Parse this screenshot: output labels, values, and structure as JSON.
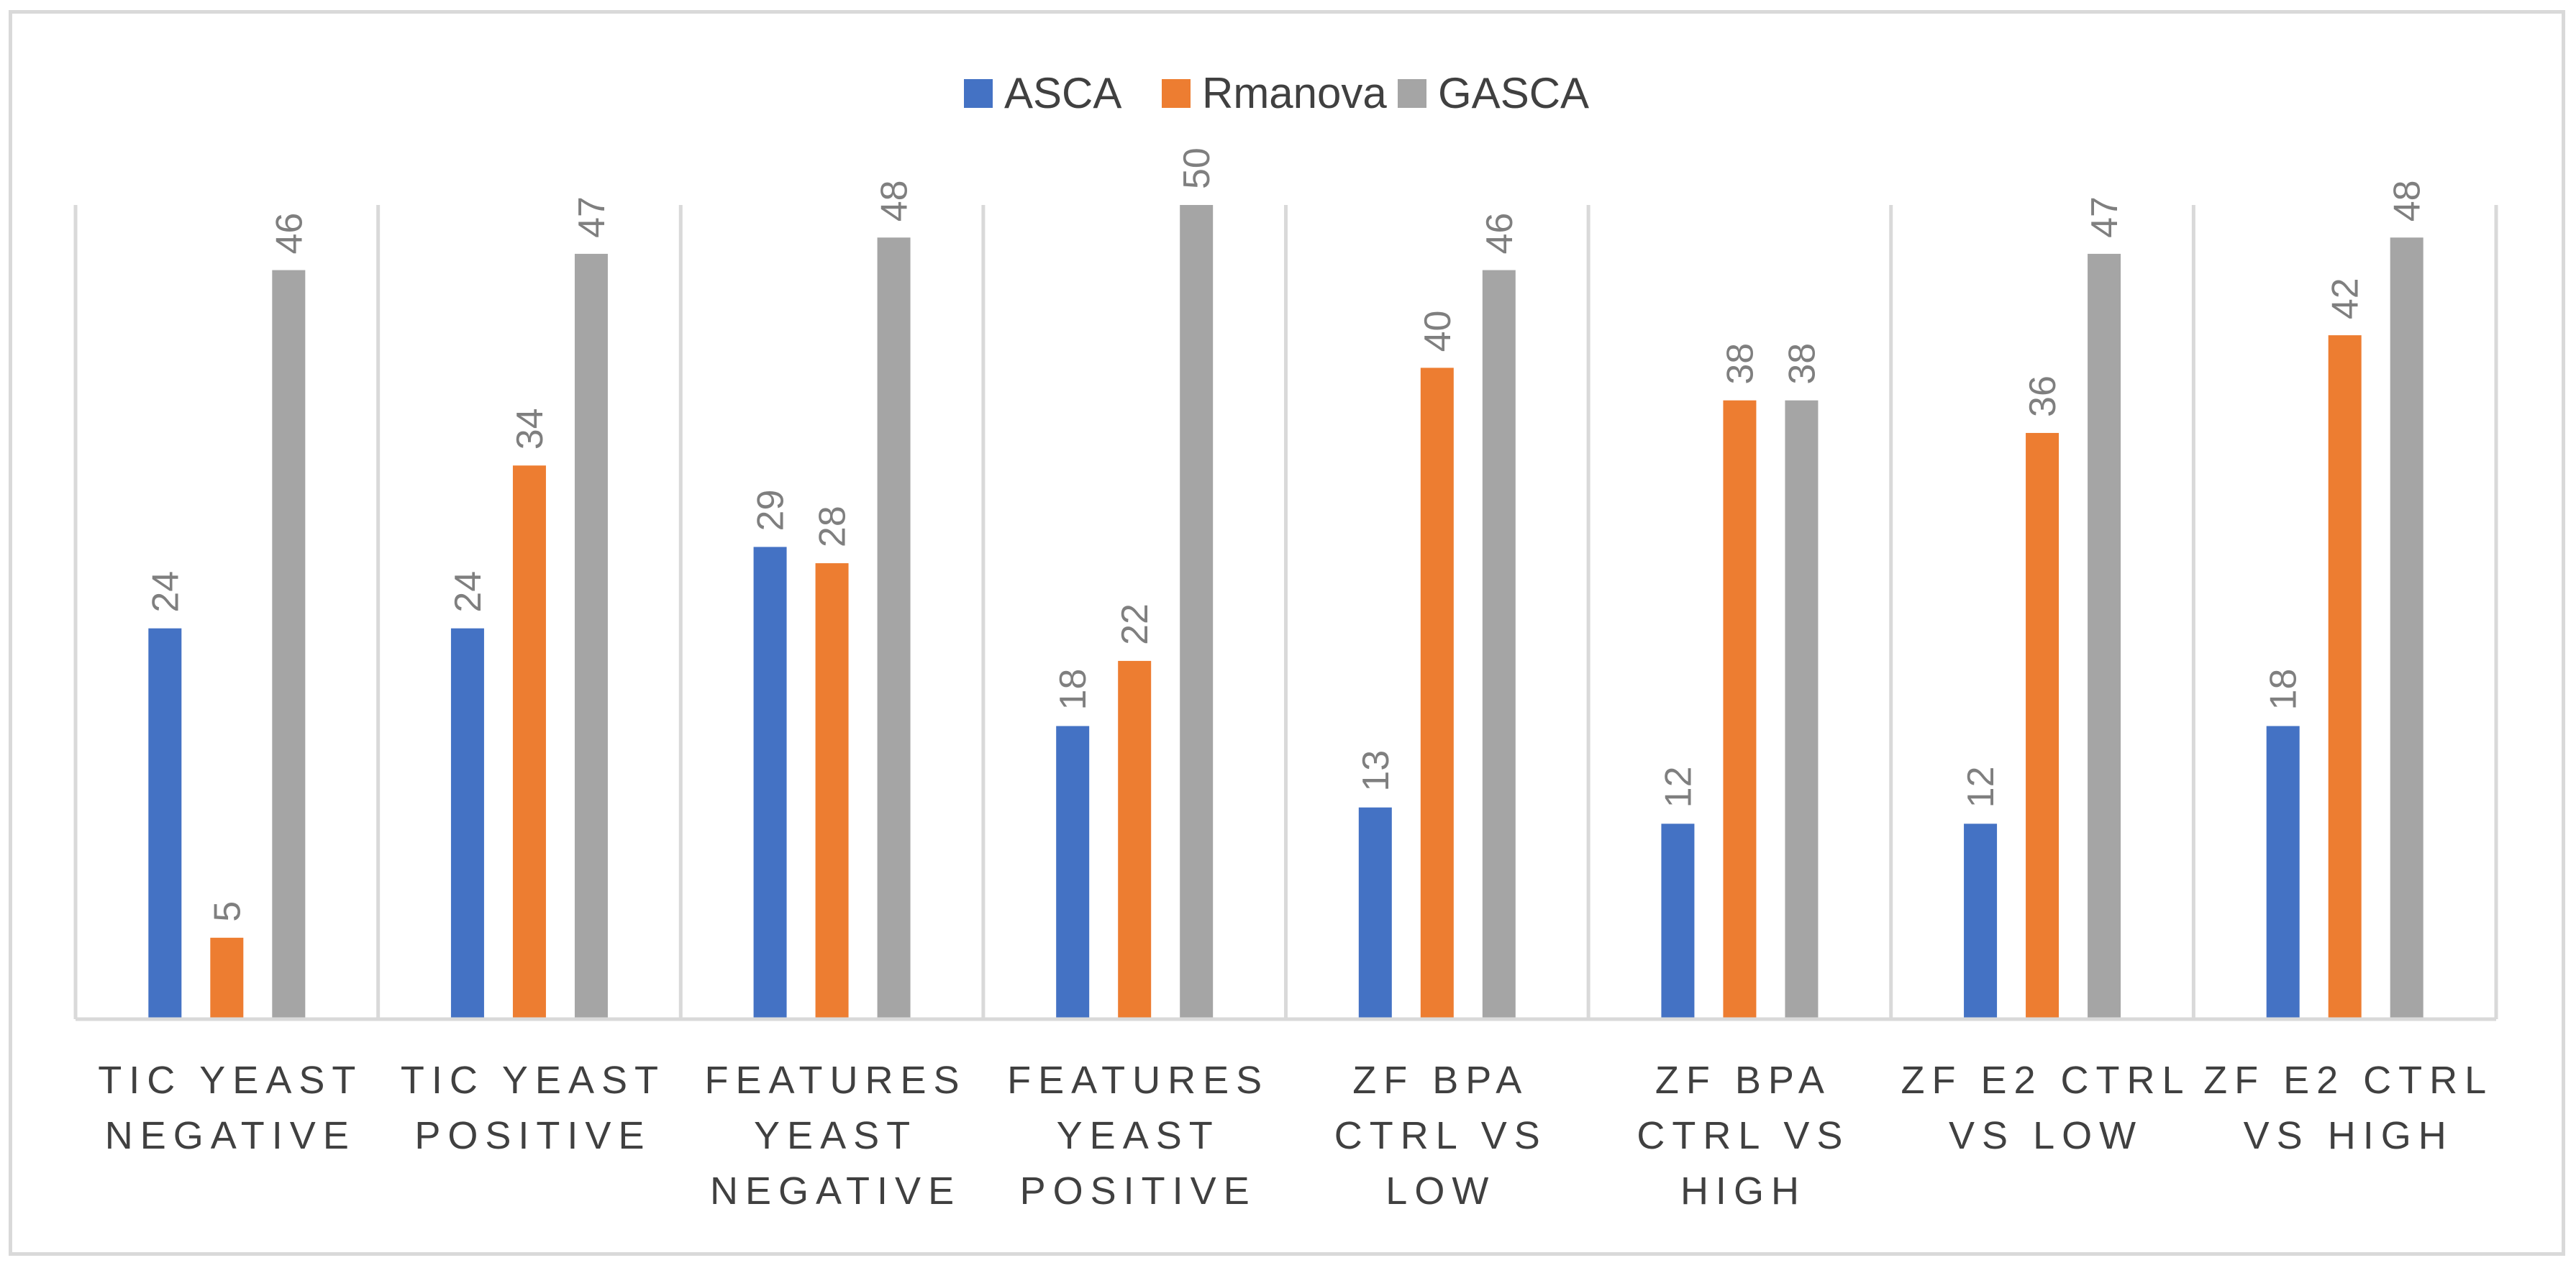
{
  "chart_data": {
    "type": "bar",
    "title": "",
    "xlabel": "",
    "ylabel": "",
    "ylim": [
      0,
      50
    ],
    "grid": false,
    "legend_position": "top",
    "categories": [
      [
        "TIC YEAST",
        "NEGATIVE"
      ],
      [
        "TIC YEAST",
        "POSITIVE"
      ],
      [
        "FEATURES",
        "YEAST",
        "NEGATIVE"
      ],
      [
        "FEATURES",
        "YEAST",
        "POSITIVE"
      ],
      [
        "ZF BPA",
        "CTRL VS",
        "LOW"
      ],
      [
        "ZF BPA",
        "CTRL VS",
        "HIGH"
      ],
      [
        "ZF E2 CTRL",
        "VS LOW"
      ],
      [
        "ZF E2 CTRL",
        "VS HIGH"
      ]
    ],
    "series": [
      {
        "name": "ASCA",
        "color": "#4472c4",
        "values": [
          24,
          24,
          29,
          18,
          13,
          12,
          12,
          18
        ]
      },
      {
        "name": "Rmanova",
        "color": "#ed7d31",
        "values": [
          5,
          34,
          28,
          22,
          40,
          38,
          36,
          42
        ]
      },
      {
        "name": "GASCA",
        "color": "#a5a5a5",
        "values": [
          46,
          47,
          48,
          50,
          46,
          38,
          47,
          48
        ]
      }
    ]
  }
}
